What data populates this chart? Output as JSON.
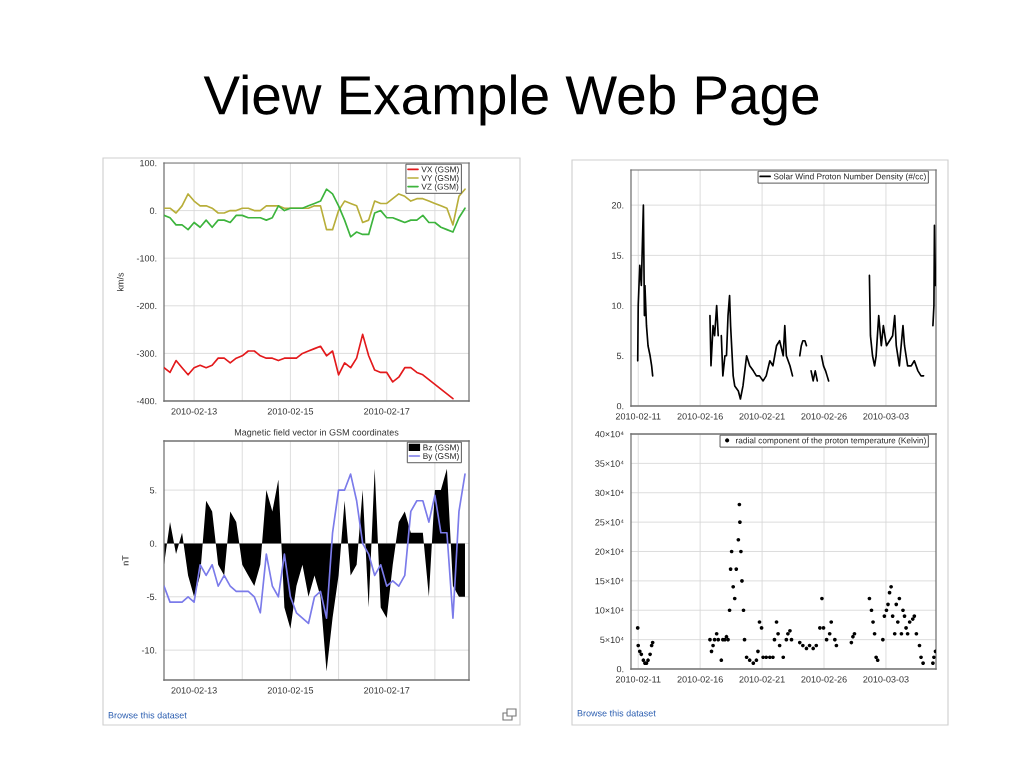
{
  "chart_data": [
    {
      "type": "line",
      "title": "View Example Web Page",
      "ylabel": "km/s",
      "x": [
        "2010-02-12T09:00",
        "2010-02-12T12:00",
        "2010-02-12T15:00",
        "2010-02-12T18:00",
        "2010-02-12T21:00",
        "2010-02-13T00:00",
        "2010-02-13T03:00",
        "2010-02-13T06:00",
        "2010-02-13T09:00",
        "2010-02-13T12:00",
        "2010-02-13T15:00",
        "2010-02-13T18:00",
        "2010-02-13T21:00",
        "2010-02-14T00:00",
        "2010-02-14T03:00",
        "2010-02-14T06:00",
        "2010-02-14T09:00",
        "2010-02-14T12:00",
        "2010-02-14T15:00",
        "2010-02-14T18:00",
        "2010-02-14T21:00",
        "2010-02-15T00:00",
        "2010-02-15T03:00",
        "2010-02-15T06:00",
        "2010-02-15T09:00",
        "2010-02-15T12:00",
        "2010-02-15T15:00",
        "2010-02-15T18:00",
        "2010-02-15T21:00",
        "2010-02-16T00:00",
        "2010-02-16T03:00",
        "2010-02-16T06:00",
        "2010-02-16T09:00",
        "2010-02-16T12:00",
        "2010-02-16T15:00",
        "2010-02-16T18:00",
        "2010-02-16T21:00",
        "2010-02-17T00:00",
        "2010-02-17T03:00",
        "2010-02-17T06:00",
        "2010-02-17T09:00",
        "2010-02-17T12:00",
        "2010-02-17T15:00",
        "2010-02-17T18:00",
        "2010-02-17T21:00",
        "2010-02-18T00:00",
        "2010-02-18T03:00",
        "2010-02-18T06:00",
        "2010-02-18T09:00",
        "2010-02-18T12:00",
        "2010-02-18T15:00"
      ],
      "xlim": [
        "2010-02-12T09:00",
        "2010-02-18T17:00"
      ],
      "xticks": [
        "2010-02-13",
        {
          "value": "2010-02-14",
          "label": null
        },
        "2010-02-15",
        {
          "value": "2010-02-16",
          "label": null
        },
        "2010-02-17",
        {
          "value": "2010-02-18",
          "label": null
        }
      ],
      "ylim": [
        -400,
        100
      ],
      "yticks": [
        {
          "value": -400,
          "label": "-400."
        },
        {
          "value": -300,
          "label": "-300."
        },
        {
          "value": -200,
          "label": "-200."
        },
        {
          "value": -100,
          "label": "-100."
        },
        {
          "value": 0,
          "label": "0."
        },
        {
          "value": 100,
          "label": "100."
        }
      ],
      "grid": true,
      "legend": "top right",
      "series": [
        {
          "name": "VX (GSM)",
          "color": "#e31a1c",
          "values": [
            -330,
            -340,
            -315,
            -330,
            -345,
            -330,
            -325,
            -330,
            -325,
            -310,
            -310,
            -320,
            -310,
            -305,
            -295,
            -295,
            -305,
            -310,
            -310,
            -315,
            -310,
            -310,
            -310,
            -300,
            -295,
            -290,
            -285,
            -305,
            -295,
            -345,
            -320,
            -330,
            -310,
            -260,
            -305,
            -335,
            -340,
            -340,
            -360,
            -350,
            -330,
            -330,
            -340,
            -345,
            -355,
            -365,
            -375,
            -385,
            -395,
            null,
            null
          ]
        },
        {
          "name": "VY (GSM)",
          "color": "#b8ae3a",
          "values": [
            5,
            5,
            -5,
            10,
            35,
            20,
            10,
            10,
            5,
            -5,
            -5,
            0,
            0,
            5,
            5,
            0,
            0,
            10,
            10,
            10,
            5,
            5,
            5,
            5,
            5,
            10,
            10,
            -40,
            -40,
            0,
            20,
            15,
            10,
            -25,
            -20,
            20,
            15,
            15,
            25,
            35,
            30,
            20,
            25,
            25,
            20,
            15,
            10,
            5,
            -30,
            30,
            45
          ]
        },
        {
          "name": "VZ (GSM)",
          "color": "#3db43d",
          "values": [
            -10,
            -15,
            -30,
            -30,
            -40,
            -25,
            -35,
            -20,
            -35,
            -20,
            -20,
            -25,
            -10,
            -10,
            -15,
            -15,
            -15,
            -20,
            -15,
            10,
            0,
            5,
            5,
            5,
            10,
            15,
            20,
            45,
            35,
            10,
            -20,
            -55,
            -45,
            -50,
            -50,
            -5,
            0,
            -15,
            -15,
            -20,
            -25,
            -20,
            -20,
            -10,
            -25,
            -25,
            -35,
            -40,
            -45,
            -15,
            5
          ]
        }
      ]
    },
    {
      "type": "line",
      "x": [
        "2010-02-10T23:00",
        "2010-02-11T00:00",
        "2010-02-11T03:00",
        "2010-02-11T06:00",
        "2010-02-11T10:00",
        "2010-02-11T12:00",
        "2010-02-11T13:00",
        "2010-02-11T16:00",
        "2010-02-11T19:00",
        "2010-02-11T23:00",
        "2010-02-12T02:00",
        "2010-02-12T04:00",
        "2010-02-14T00:00",
        "2010-02-16T19:00",
        "2010-02-16T21:00",
        "2010-02-17T01:00",
        "2010-02-17T04:00",
        "2010-02-17T08:00",
        "2010-02-17T11:00",
        "2010-02-17T14:00",
        "2010-02-17T17:00",
        "2010-02-17T20:00",
        "2010-02-18T00:00",
        "2010-02-18T03:00",
        "2010-02-18T06:00",
        "2010-02-18T09:00",
        "2010-02-18T11:00",
        "2010-02-18T16:00",
        "2010-02-18T19:00",
        "2010-02-19T02:00",
        "2010-02-19T06:00",
        "2010-02-19T11:00",
        "2010-02-19T18:00",
        "2010-02-20T00:00",
        "2010-02-20T07:00",
        "2010-02-20T13:00",
        "2010-02-20T19:00",
        "2010-02-21T02:00",
        "2010-02-21T08:00",
        "2010-02-21T15:00",
        "2010-02-21T21:00",
        "2010-02-22T04:00",
        "2010-02-22T10:00",
        "2010-02-22T17:00",
        "2010-02-22T20:00",
        "2010-02-22T23:00",
        "2010-02-23T06:00",
        "2010-02-23T11:00",
        "2010-02-23T18:00",
        "2010-02-24T01:00",
        "2010-02-24T04:00",
        "2010-02-24T07:00",
        "2010-02-24T11:00",
        "2010-02-24T14:00",
        "2010-02-24T19:00",
        "2010-02-24T23:00",
        "2010-02-25T03:00",
        "2010-02-25T07:00",
        "2010-02-25T11:00",
        "2010-02-25T15:00",
        "2010-02-25T19:00",
        "2010-02-25T23:00",
        "2010-02-26T03:00",
        "2010-02-26T06:00",
        "2010-02-26T09:00",
        "2010-02-27T00:00",
        "2010-03-01T16:00",
        "2010-03-01T18:00",
        "2010-03-01T22:00",
        "2010-03-02T02:00",
        "2010-03-02T05:00",
        "2010-03-02T10:00",
        "2010-03-02T15:00",
        "2010-03-02T19:00",
        "2010-03-03T01:00",
        "2010-03-03T07:00",
        "2010-03-03T13:00",
        "2010-03-03T17:00",
        "2010-03-03T20:00",
        "2010-03-04T02:00",
        "2010-03-04T09:00",
        "2010-03-04T12:00",
        "2010-03-04T18:00",
        "2010-03-05T01:00",
        "2010-03-05T07:00",
        "2010-03-05T14:00",
        "2010-03-05T20:00",
        "2010-03-06T01:00",
        "2010-03-06T08:00",
        "2010-03-06T19:00",
        "2010-03-06T21:00",
        "2010-03-06T22:00",
        "2010-03-07T00:00"
      ],
      "xlim": [
        "2010-02-10T10:00",
        "2010-03-07T01:00"
      ],
      "xticks": [
        "2010-02-11",
        "2010-02-16",
        "2010-02-21",
        "2010-02-26",
        "2010-03-03"
      ],
      "ylim": [
        0,
        23.5
      ],
      "yticks": [
        {
          "value": 0,
          "label": "0."
        },
        {
          "value": 5,
          "label": "5."
        },
        {
          "value": 10,
          "label": "10."
        },
        {
          "value": 15,
          "label": "15."
        },
        {
          "value": 20,
          "label": "20."
        }
      ],
      "grid": true,
      "legend": "top right",
      "series": [
        {
          "name": "Solar Wind Proton Number Density (#/cc)",
          "color": "#000000",
          "values": [
            4.5,
            10,
            14,
            12,
            20,
            9,
            12,
            8,
            6,
            5,
            4,
            3,
            null,
            9,
            4,
            8,
            7,
            10,
            7,
            null,
            7,
            3,
            5,
            5,
            9,
            11,
            8,
            3,
            2,
            1.5,
            0.7,
            2,
            5,
            4,
            3.5,
            3,
            3,
            2.5,
            3,
            4.5,
            4,
            6,
            6.5,
            5,
            8,
            5,
            4,
            3,
            null,
            5,
            6,
            6.5,
            6.5,
            6,
            null,
            3.5,
            2.5,
            3.5,
            2.5,
            null,
            5,
            4,
            3.5,
            3,
            2.5,
            null,
            13,
            7,
            5,
            4,
            5,
            9,
            6,
            8,
            6,
            6.5,
            7,
            9,
            6,
            4,
            8,
            6,
            4,
            4,
            4.5,
            3.5,
            3,
            3,
            null,
            8,
            10,
            18,
            12
          ]
        }
      ]
    },
    {
      "type": "line",
      "title": "Magnetic field vector in GSM coordinates",
      "ylabel": "nT",
      "x": [
        "2010-02-12T09:00",
        "2010-02-12T12:00",
        "2010-02-12T15:00",
        "2010-02-12T18:00",
        "2010-02-12T21:00",
        "2010-02-13T00:00",
        "2010-02-13T03:00",
        "2010-02-13T06:00",
        "2010-02-13T09:00",
        "2010-02-13T12:00",
        "2010-02-13T15:00",
        "2010-02-13T18:00",
        "2010-02-13T21:00",
        "2010-02-14T00:00",
        "2010-02-14T03:00",
        "2010-02-14T06:00",
        "2010-02-14T09:00",
        "2010-02-14T12:00",
        "2010-02-14T15:00",
        "2010-02-14T18:00",
        "2010-02-14T21:00",
        "2010-02-15T00:00",
        "2010-02-15T03:00",
        "2010-02-15T06:00",
        "2010-02-15T09:00",
        "2010-02-15T12:00",
        "2010-02-15T15:00",
        "2010-02-15T18:00",
        "2010-02-15T21:00",
        "2010-02-16T00:00",
        "2010-02-16T03:00",
        "2010-02-16T06:00",
        "2010-02-16T09:00",
        "2010-02-16T12:00",
        "2010-02-16T15:00",
        "2010-02-16T18:00",
        "2010-02-16T21:00",
        "2010-02-17T00:00",
        "2010-02-17T03:00",
        "2010-02-17T06:00",
        "2010-02-17T09:00",
        "2010-02-17T12:00",
        "2010-02-17T15:00",
        "2010-02-17T18:00",
        "2010-02-17T21:00",
        "2010-02-18T00:00",
        "2010-02-18T03:00",
        "2010-02-18T06:00",
        "2010-02-18T09:00",
        "2010-02-18T12:00",
        "2010-02-18T15:00"
      ],
      "xlim": [
        "2010-02-12T09:00",
        "2010-02-18T17:00"
      ],
      "xticks": [
        "2010-02-13",
        {
          "value": "2010-02-14",
          "label": null
        },
        "2010-02-15",
        {
          "value": "2010-02-16",
          "label": null
        },
        "2010-02-17",
        {
          "value": "2010-02-18",
          "label": null
        }
      ],
      "ylim": [
        -12.8,
        9.6
      ],
      "yticks": [
        {
          "value": -10,
          "label": "-10."
        },
        {
          "value": -5,
          "label": "-5."
        },
        {
          "value": 0,
          "label": "0."
        },
        {
          "value": 5,
          "label": "5."
        }
      ],
      "grid": true,
      "legend": "top right",
      "annotations": [
        "Browse this dataset"
      ],
      "series": [
        {
          "name": "Bz (GSM)",
          "type": "area",
          "color": "#000000",
          "values": [
            -2,
            2,
            -1,
            1,
            -3,
            -5,
            -3,
            4,
            3,
            -2,
            -3,
            3,
            2,
            -2,
            -3,
            -4,
            -2,
            5,
            3,
            6,
            -6,
            -8,
            -4,
            -2,
            -5,
            -3,
            -5,
            -12,
            -7,
            -3,
            4,
            -3,
            -2,
            5,
            -6,
            7,
            -6,
            -7,
            -2,
            2,
            3,
            1,
            1,
            1,
            -5,
            5,
            5,
            7,
            -4,
            -5,
            -5
          ]
        },
        {
          "name": "By (GSM)",
          "color": "#7b7bea",
          "values": [
            -4,
            -5.5,
            -5.5,
            -5.5,
            -5,
            -5.5,
            -2,
            -3,
            -2,
            -4,
            -3,
            -4,
            -4.5,
            -4.5,
            -4.5,
            -5,
            -6.5,
            -1,
            -4,
            -5,
            -1,
            -5,
            -6.5,
            -7,
            -7.5,
            -5,
            -4.5,
            -7,
            1,
            5,
            5,
            6.5,
            4,
            0,
            -1,
            -3,
            -2,
            -4,
            -3.5,
            -4,
            -3,
            3,
            4,
            4,
            2,
            4.5,
            1,
            1,
            -7,
            3,
            6.5
          ]
        }
      ]
    },
    {
      "type": "scatter",
      "marker": "circle",
      "x": [
        "2010-02-10T23:00",
        "2010-02-11T00:00",
        "2010-02-11T03:00",
        "2010-02-11T06:00",
        "2010-02-11T10:00",
        "2010-02-11T13:00",
        "2010-02-11T16:00",
        "2010-02-11T19:00",
        "2010-02-11T23:00",
        "2010-02-12T02:00",
        "2010-02-12T04:00",
        "2010-02-16T19:00",
        "2010-02-16T22:00",
        "2010-02-17T01:00",
        "2010-02-17T04:00",
        "2010-02-17T08:00",
        "2010-02-17T11:00",
        "2010-02-17T17:00",
        "2010-02-17T20:00",
        "2010-02-18T00:00",
        "2010-02-18T03:00",
        "2010-02-18T06:00",
        "2010-02-18T09:00",
        "2010-02-18T11:00",
        "2010-02-18T13:00",
        "2010-02-18T16:00",
        "2010-02-18T19:00",
        "2010-02-18T22:00",
        "2010-02-19T02:00",
        "2010-02-19T04:00",
        "2010-02-19T05:00",
        "2010-02-19T07:00",
        "2010-02-19T09:00",
        "2010-02-19T12:00",
        "2010-02-19T14:00",
        "2010-02-19T18:00",
        "2010-02-20T00:00",
        "2010-02-20T07:00",
        "2010-02-20T13:00",
        "2010-02-20T16:00",
        "2010-02-20T19:00",
        "2010-02-20T23:00",
        "2010-02-21T02:00",
        "2010-02-21T08:00",
        "2010-02-21T15:00",
        "2010-02-21T21:00",
        "2010-02-22T00:00",
        "2010-02-22T04:00",
        "2010-02-22T07:00",
        "2010-02-22T10:00",
        "2010-02-22T17:00",
        "2010-02-22T23:00",
        "2010-02-23T02:00",
        "2010-02-23T06:00",
        "2010-02-23T09:00",
        "2010-02-24T01:00",
        "2010-02-24T07:00",
        "2010-02-24T14:00",
        "2010-02-24T20:00",
        "2010-02-25T03:00",
        "2010-02-25T09:00",
        "2010-02-25T16:00",
        "2010-02-25T20:00",
        "2010-02-25T23:00",
        "2010-02-26T05:00",
        "2010-02-26T11:00",
        "2010-02-26T14:00",
        "2010-02-26T21:00",
        "2010-02-27T00:00",
        "2010-02-28T05:00",
        "2010-02-28T08:00",
        "2010-02-28T11:00",
        "2010-03-01T16:00",
        "2010-03-01T20:00",
        "2010-03-01T23:00",
        "2010-03-02T02:00",
        "2010-03-02T05:00",
        "2010-03-02T08:00",
        "2010-03-02T18:00",
        "2010-03-02T21:00",
        "2010-03-03T01:00",
        "2010-03-03T04:00",
        "2010-03-03T07:00",
        "2010-03-03T10:00",
        "2010-03-03T13:00",
        "2010-03-03T17:00",
        "2010-03-03T20:00",
        "2010-03-03T23:00",
        "2010-03-04T02:00",
        "2010-03-04T06:00",
        "2010-03-04T09:00",
        "2010-03-04T12:00",
        "2010-03-04T15:00",
        "2010-03-04T18:00",
        "2010-03-04T22:00",
        "2010-03-05T04:00",
        "2010-03-05T07:00",
        "2010-03-05T11:00",
        "2010-03-05T17:00",
        "2010-03-05T20:00",
        "2010-03-06T00:00",
        "2010-03-06T19:00",
        "2010-03-06T21:00",
        "2010-03-07T00:00"
      ],
      "xlim": [
        "2010-02-10T10:00",
        "2010-03-07T01:00"
      ],
      "xticks": [
        "2010-02-11",
        "2010-02-16",
        "2010-02-21",
        "2010-02-26",
        "2010-03-03"
      ],
      "ylim": [
        0,
        400000
      ],
      "yticks": [
        {
          "value": 0,
          "label": "0."
        },
        {
          "value": 50000,
          "label": "5×10⁴"
        },
        {
          "value": 100000,
          "label": "10×10⁴"
        },
        {
          "value": 150000,
          "label": "15×10⁴"
        },
        {
          "value": 200000,
          "label": "20×10⁴"
        },
        {
          "value": 250000,
          "label": "25×10⁴"
        },
        {
          "value": 300000,
          "label": "30×10⁴"
        },
        {
          "value": 350000,
          "label": "35×10⁴"
        },
        {
          "value": 400000,
          "label": "40×10⁴"
        }
      ],
      "grid": true,
      "legend": "top right",
      "annotations": [
        "Browse this dataset"
      ],
      "series": [
        {
          "name": "radial component of the proton temperature (Kelvin)",
          "color": "#000000",
          "values": [
            70000,
            40000,
            30000,
            25000,
            15000,
            10000,
            10000,
            15000,
            25000,
            40000,
            45000,
            50000,
            30000,
            40000,
            50000,
            60000,
            50000,
            15000,
            50000,
            50000,
            55000,
            50000,
            100000,
            170000,
            200000,
            140000,
            120000,
            170000,
            220000,
            280000,
            250000,
            200000,
            150000,
            100000,
            50000,
            20000,
            15000,
            10000,
            15000,
            30000,
            80000,
            70000,
            20000,
            20000,
            20000,
            20000,
            50000,
            80000,
            60000,
            40000,
            20000,
            50000,
            60000,
            65000,
            50000,
            45000,
            40000,
            35000,
            40000,
            35000,
            40000,
            70000,
            120000,
            70000,
            50000,
            60000,
            80000,
            50000,
            40000,
            45000,
            55000,
            60000,
            120000,
            100000,
            80000,
            60000,
            20000,
            15000,
            50000,
            90000,
            100000,
            110000,
            130000,
            140000,
            90000,
            60000,
            110000,
            80000,
            120000,
            60000,
            100000,
            90000,
            70000,
            60000,
            80000,
            85000,
            90000,
            60000,
            40000,
            20000,
            10000,
            10000,
            20000,
            30000
          ]
        }
      ]
    }
  ]
}
